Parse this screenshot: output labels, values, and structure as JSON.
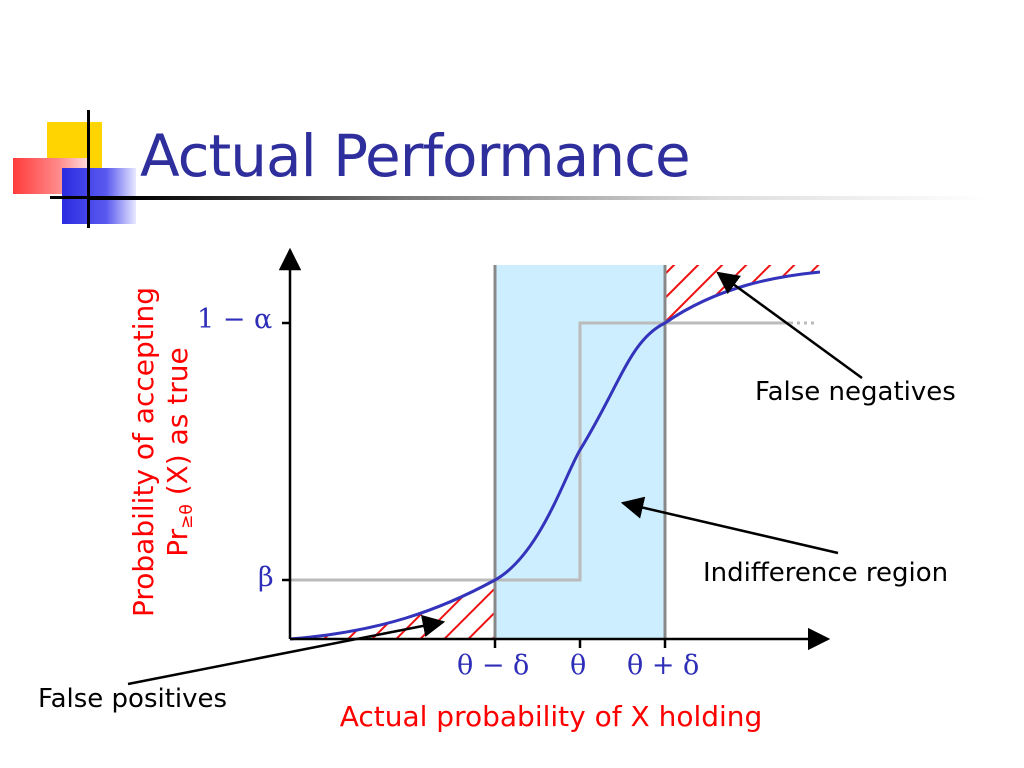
{
  "slide": {
    "title": "Actual Performance"
  },
  "colors": {
    "title": "#2e2e9c",
    "axis_label": "#ff0000",
    "tick_label": "#2e2eb8",
    "curve": "#3333bb",
    "indifference_fill": "#cceeff",
    "hatch": "#ee1111",
    "step_line": "#bbbbbb"
  },
  "diagram": {
    "y_axis_label_line1": "Probability of accepting",
    "y_axis_label_line2_prefix": "Pr",
    "y_axis_label_line2_sub": "≥θ",
    "y_axis_label_line2_suffix": "(X) as true",
    "x_axis_label": "Actual probability of X holding",
    "y_ticks": {
      "upper": "1 − α",
      "lower": "β"
    },
    "x_ticks": {
      "left": "θ − δ",
      "middle": "θ",
      "right": "θ + δ"
    },
    "annotations": {
      "false_negatives": "False negatives",
      "indifference_region": "Indifference region",
      "false_positives": "False positives"
    }
  }
}
